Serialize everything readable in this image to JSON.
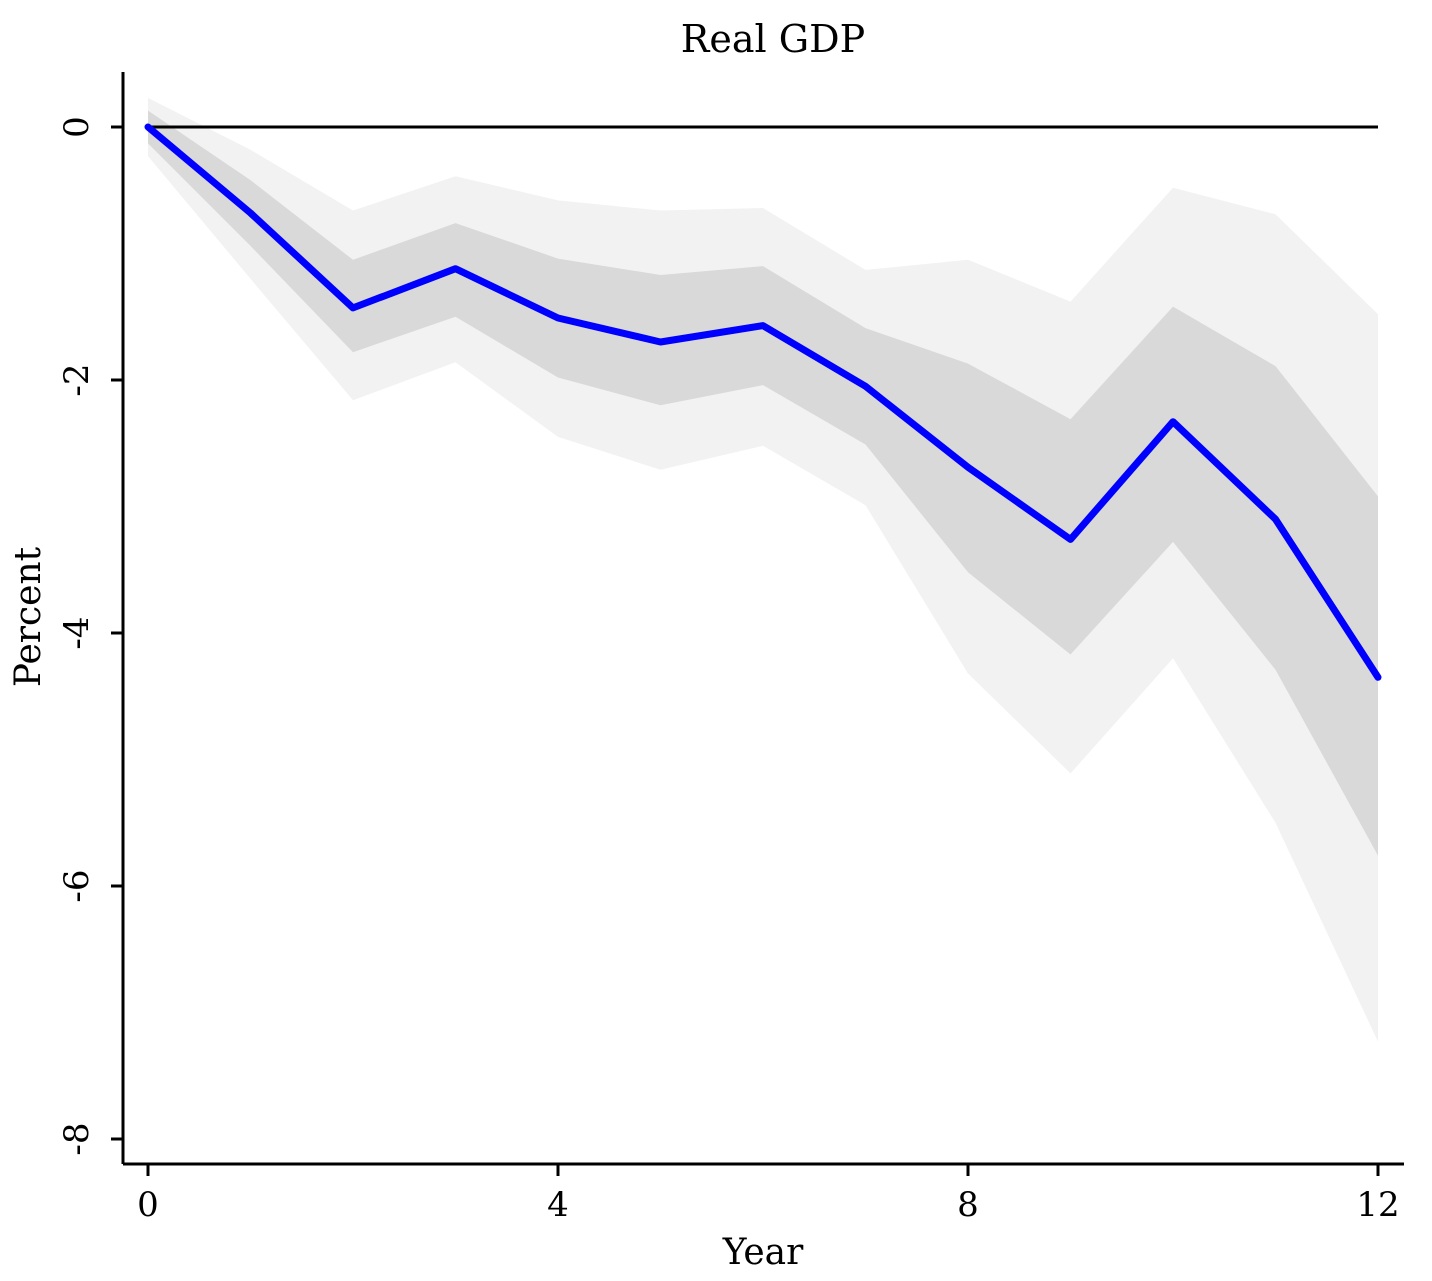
{
  "chart_data": {
    "type": "line",
    "title": "Real GDP",
    "xlabel": "Year",
    "ylabel": "Percent",
    "xlim": [
      0,
      12
    ],
    "ylim": [
      -8,
      0
    ],
    "x_ticks": [
      0,
      4,
      8,
      12
    ],
    "x_tick_labels": [
      "0",
      "4",
      "8",
      "12"
    ],
    "y_ticks": [
      0,
      -2,
      -4,
      -6,
      -8
    ],
    "y_tick_labels": [
      "0",
      "-2",
      "-4",
      "-6",
      "-8"
    ],
    "grid": false,
    "zero_line": true,
    "x": [
      0,
      1,
      2,
      3,
      4,
      5,
      6,
      7,
      8,
      9,
      10,
      11,
      12
    ],
    "series": [
      {
        "color": "#0000ff",
        "values": [
          0,
          -0.68,
          -1.43,
          -1.12,
          -1.51,
          -1.7,
          -1.57,
          -2.05,
          -2.69,
          -3.26,
          -2.33,
          -3.1,
          -4.35
        ]
      }
    ],
    "bands": [
      {
        "color": "#f2f2f2",
        "lower": [
          -0.23,
          -1.2,
          -2.16,
          -1.86,
          -2.45,
          -2.71,
          -2.52,
          -2.99,
          -4.32,
          -5.11,
          -4.2,
          -5.5,
          -7.23
        ],
        "upper": [
          0.23,
          -0.18,
          -0.66,
          -0.39,
          -0.58,
          -0.66,
          -0.64,
          -1.13,
          -1.05,
          -1.38,
          -0.48,
          -0.69,
          -1.48
        ]
      },
      {
        "color": "#d9d9d9",
        "lower": [
          -0.13,
          -0.94,
          -1.78,
          -1.5,
          -1.98,
          -2.2,
          -2.04,
          -2.51,
          -3.52,
          -4.17,
          -3.28,
          -4.29,
          -5.76
        ],
        "upper": [
          0.13,
          -0.42,
          -1.05,
          -0.76,
          -1.04,
          -1.17,
          -1.1,
          -1.59,
          -1.87,
          -2.31,
          -1.42,
          -1.89,
          -2.92
        ]
      }
    ]
  }
}
